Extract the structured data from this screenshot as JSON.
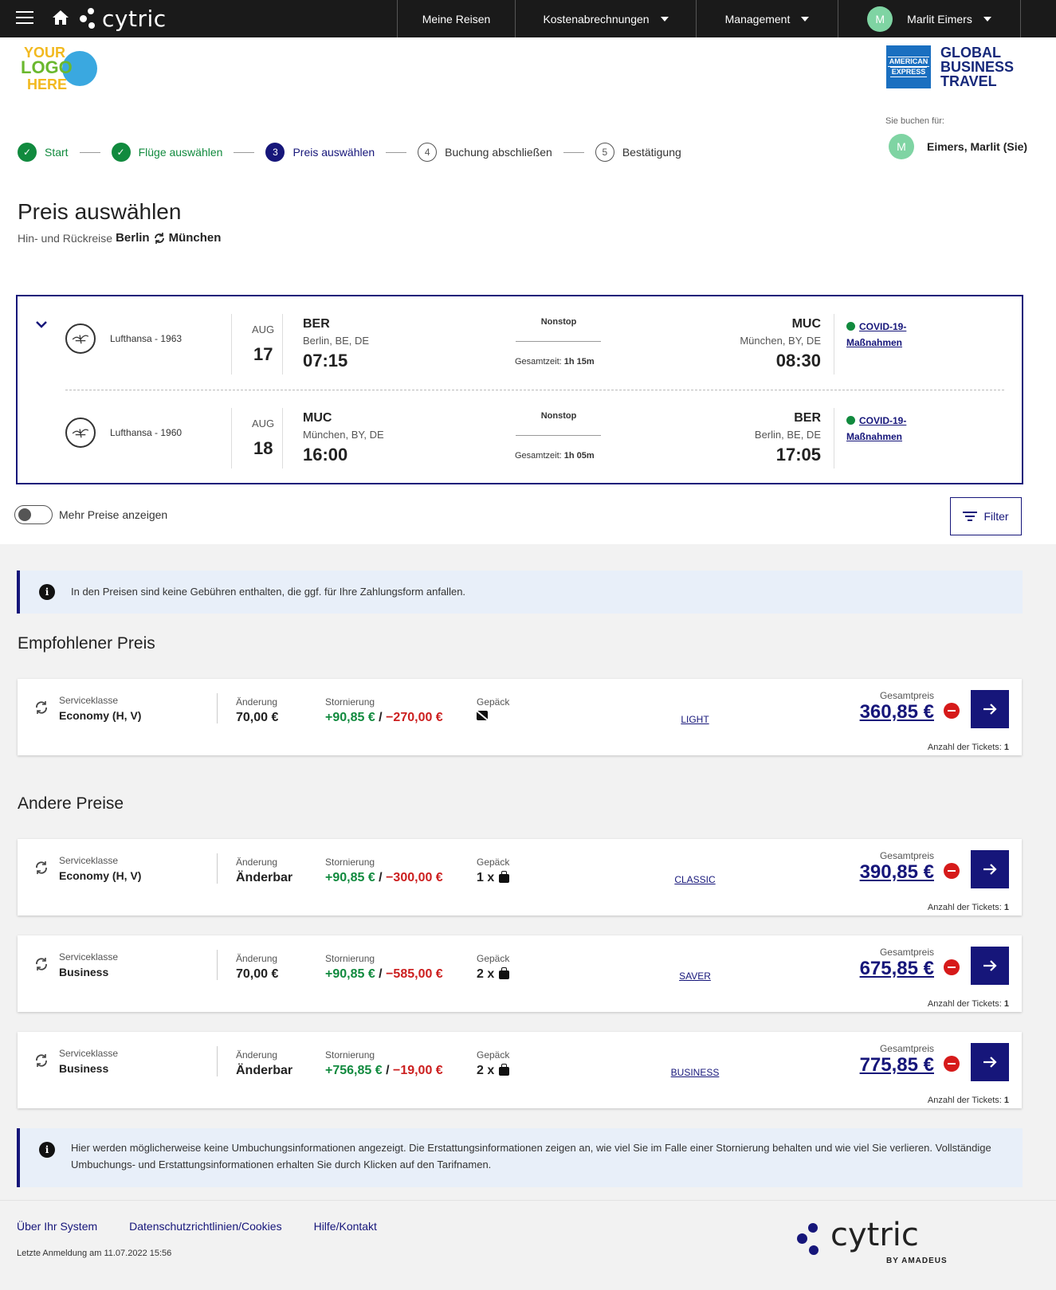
{
  "nav": {
    "brand": "cytric",
    "items": [
      {
        "label": "Meine Reisen",
        "has_caret": false
      },
      {
        "label": "Kostenabrechnungen",
        "has_caret": true
      },
      {
        "label": "Management",
        "has_caret": true
      }
    ],
    "user": {
      "initial": "M",
      "name": "Marlit Eimers"
    }
  },
  "logos": {
    "customer": [
      "YOUR",
      "LOGO",
      "HERE"
    ],
    "amex_box": [
      "AMERICAN",
      "EXPRESS"
    ],
    "amex_text": [
      "GLOBAL",
      "BUSINESS",
      "TRAVEL"
    ]
  },
  "booking_for": {
    "label": "Sie buchen für:",
    "initial": "M",
    "name": "Eimers, Marlit (Sie)"
  },
  "stepper": [
    {
      "num": "✓",
      "label": "Start",
      "state": "done"
    },
    {
      "num": "✓",
      "label": "Flüge auswählen",
      "state": "done"
    },
    {
      "num": "3",
      "label": "Preis auswählen",
      "state": "active"
    },
    {
      "num": "4",
      "label": "Buchung abschließen",
      "state": "todo"
    },
    {
      "num": "5",
      "label": "Bestätigung",
      "state": "todo"
    }
  ],
  "page": {
    "title": "Preis auswählen",
    "sub_prefix": "Hin- und Rückreise",
    "origin": "Berlin",
    "destination": "München"
  },
  "legs": [
    {
      "airline": "Lufthansa - 1963",
      "month": "AUG",
      "day": "17",
      "dep_code": "BER",
      "dep_city": "Berlin, BE, DE",
      "dep_time": "07:15",
      "stops": "Nonstop",
      "duration_label": "Gesamtzeit:",
      "duration": "1h 15m",
      "arr_code": "MUC",
      "arr_city": "München, BY, DE",
      "arr_time": "08:30",
      "covid_1": "COVID-19-",
      "covid_2": "Maßnahmen"
    },
    {
      "airline": "Lufthansa - 1960",
      "month": "AUG",
      "day": "18",
      "dep_code": "MUC",
      "dep_city": "München, BY, DE",
      "dep_time": "16:00",
      "stops": "Nonstop",
      "duration_label": "Gesamtzeit:",
      "duration": "1h 05m",
      "arr_code": "BER",
      "arr_city": "Berlin, BE, DE",
      "arr_time": "17:05",
      "covid_1": "COVID-19-",
      "covid_2": "Maßnahmen"
    }
  ],
  "toggle_label": "Mehr Preise anzeigen",
  "filter_label": "Filter",
  "info_fees": "In den Preisen sind keine Gebühren enthalten, die ggf. für Ihre Zahlungsform anfallen.",
  "recommended_title": "Empfohlener Preis",
  "other_title": "Andere Preise",
  "labels": {
    "class": "Serviceklasse",
    "change": "Änderung",
    "cancel": "Stornierung",
    "baggage": "Gepäck",
    "total": "Gesamtpreis",
    "tickets": "Anzahl der Tickets:"
  },
  "fares": [
    {
      "class": "Economy (H, V)",
      "change": "70,00 €",
      "cancel_pos": "+90,85 €",
      "cancel_sep": " / ",
      "cancel_neg": "−270,00 €",
      "baggage": "",
      "bag_icon": "no-baggage-icon",
      "fare_name": "LIGHT",
      "total": "360,85 €",
      "tickets": "1"
    },
    {
      "class": "Economy (H, V)",
      "change": "Änderbar",
      "cancel_pos": "+90,85 €",
      "cancel_sep": " / ",
      "cancel_neg": "−300,00 €",
      "baggage": "1 x",
      "bag_icon": "baggage-icon",
      "fare_name": "CLASSIC",
      "total": "390,85 €",
      "tickets": "1"
    },
    {
      "class": "Business",
      "change": "70,00 €",
      "cancel_pos": "+90,85 €",
      "cancel_sep": " / ",
      "cancel_neg": "−585,00 €",
      "baggage": "2 x",
      "bag_icon": "baggage-icon",
      "fare_name": "SAVER",
      "total": "675,85 €",
      "tickets": "1"
    },
    {
      "class": "Business",
      "change": "Änderbar",
      "cancel_pos": "+756,85 €",
      "cancel_sep": " / ",
      "cancel_neg": "−19,00 €",
      "baggage": "2 x",
      "bag_icon": "baggage-icon",
      "fare_name": "BUSINESS",
      "total": "775,85 €",
      "tickets": "1"
    }
  ],
  "info_rebook": "Hier werden möglicherweise keine Umbuchungsinformationen angezeigt. Die Erstattungsinformationen zeigen an, wie viel Sie im Falle einer Stornierung behalten und wie viel Sie verlieren. Vollständige Umbuchungs- und Erstattungsinformationen erhalten Sie durch Klicken auf den Tarifnamen.",
  "footer": {
    "links": [
      "Über Ihr System",
      "Datenschutzrichtlinien/Cookies",
      "Hilfe/Kontakt"
    ],
    "last_login": "Letzte Anmeldung am 11.07.2022 15:56",
    "logo_text": "cytric",
    "logo_by": "BY AMADEUS"
  },
  "colors": {
    "primary": "#16167a",
    "success": "#118a3e",
    "danger": "#cc1f1f",
    "avatar": "#7fd4a3"
  }
}
